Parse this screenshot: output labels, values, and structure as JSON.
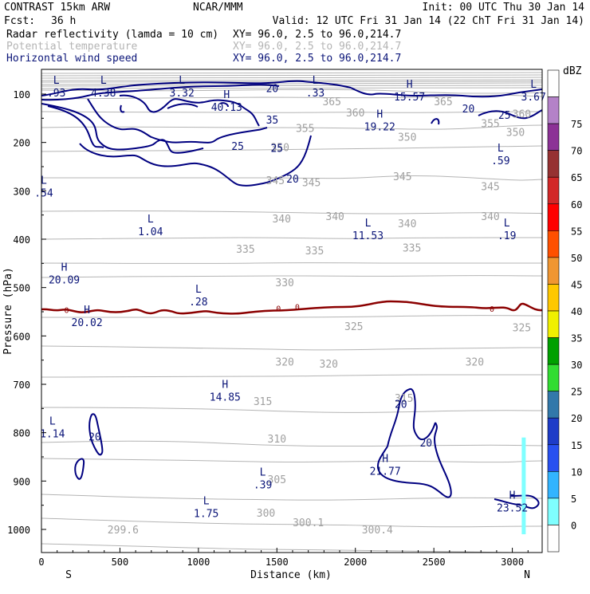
{
  "header": {
    "model": "CONTRAST 15km ARW",
    "org": "NCAR/MMM",
    "init": "Init: 00 UTC Thu 30 Jan 14",
    "fcst_label": "Fcst:",
    "fcst_value": "36 h",
    "valid": "Valid: 12 UTC Fri 31 Jan 14 (22 ChT Fri 31 Jan 14)",
    "fields": [
      {
        "name": "Radar reflectivity (lamda = 10 cm)",
        "xy": "XY=  96.0,  2.5 to  96.0,214.7",
        "color": "#000000"
      },
      {
        "name": "Potential temperature",
        "xy": "XY=  96.0,  2.5 to  96.0,214.7",
        "color": "#b4b4b4"
      },
      {
        "name": "Horizontal wind speed",
        "xy": "XY=  96.0,  2.5 to  96.0,214.7",
        "color": "#0a1478"
      }
    ]
  },
  "chart_data": {
    "type": "cross-section",
    "xlabel": "Distance (km)",
    "ylabel": "Pressure (hPa)",
    "xlim": [
      0,
      3190
    ],
    "ylim": [
      1045,
      65
    ],
    "x_ticks": [
      0,
      500,
      1000,
      1500,
      2000,
      2500,
      3000
    ],
    "y_ticks": [
      100,
      200,
      300,
      400,
      500,
      600,
      700,
      800,
      900,
      1000
    ],
    "end_labels": {
      "left": "S",
      "right": "N"
    },
    "colorbar": {
      "unit": "dBZ",
      "levels": [
        0,
        5,
        10,
        15,
        20,
        25,
        30,
        35,
        40,
        45,
        50,
        55,
        60,
        65,
        70,
        75
      ],
      "colors": [
        "#ffffff",
        "#7fffff",
        "#32b4ff",
        "#2850f0",
        "#1e3cc8",
        "#3278aa",
        "#32dc32",
        "#00a000",
        "#f0f000",
        "#ffc800",
        "#f09632",
        "#ff5000",
        "#ff0000",
        "#d22828",
        "#963232",
        "#8c3296",
        "#b482c8",
        "#ffffff"
      ]
    },
    "theta_labels": [
      {
        "text": "365",
        "x": 1850,
        "p": 115
      },
      {
        "text": "365",
        "x": 2560,
        "p": 115
      },
      {
        "text": "360",
        "x": 2000,
        "p": 138
      },
      {
        "text": "360",
        "x": 3060,
        "p": 140
      },
      {
        "text": "355",
        "x": 1680,
        "p": 170
      },
      {
        "text": "355",
        "x": 2860,
        "p": 160
      },
      {
        "text": "350",
        "x": 1520,
        "p": 210
      },
      {
        "text": "350",
        "x": 2330,
        "p": 188
      },
      {
        "text": "350",
        "x": 3020,
        "p": 178
      },
      {
        "text": "345",
        "x": 1490,
        "p": 278
      },
      {
        "text": "345",
        "x": 1720,
        "p": 282
      },
      {
        "text": "345",
        "x": 2300,
        "p": 270
      },
      {
        "text": "345",
        "x": 2860,
        "p": 290
      },
      {
        "text": "340",
        "x": 1530,
        "p": 357
      },
      {
        "text": "340",
        "x": 1870,
        "p": 352
      },
      {
        "text": "340",
        "x": 2330,
        "p": 367
      },
      {
        "text": "340",
        "x": 2860,
        "p": 352
      },
      {
        "text": "335",
        "x": 1300,
        "p": 420
      },
      {
        "text": "335",
        "x": 1740,
        "p": 423
      },
      {
        "text": "335",
        "x": 2360,
        "p": 417
      },
      {
        "text": "330",
        "x": 1550,
        "p": 489
      },
      {
        "text": "325",
        "x": 1990,
        "p": 580
      },
      {
        "text": "325",
        "x": 3060,
        "p": 582
      },
      {
        "text": "320",
        "x": 1550,
        "p": 653
      },
      {
        "text": "320",
        "x": 1830,
        "p": 657
      },
      {
        "text": "320",
        "x": 2760,
        "p": 653
      },
      {
        "text": "315",
        "x": 1410,
        "p": 735
      },
      {
        "text": "315",
        "x": 2310,
        "p": 728
      },
      {
        "text": "310",
        "x": 1500,
        "p": 812
      },
      {
        "text": "305",
        "x": 1500,
        "p": 896
      },
      {
        "text": "300",
        "x": 1430,
        "p": 965
      },
      {
        "text": "299.6",
        "x": 520,
        "p": 1000
      },
      {
        "text": "300.1",
        "x": 1700,
        "p": 985
      },
      {
        "text": "300.4",
        "x": 2140,
        "p": 1000
      }
    ],
    "wind_labels": [
      {
        "text": "20",
        "x": 1470,
        "p": 88
      },
      {
        "text": "35",
        "x": 1470,
        "p": 153
      },
      {
        "text": "25",
        "x": 1250,
        "p": 207
      },
      {
        "text": "25",
        "x": 1500,
        "p": 211
      },
      {
        "text": "20",
        "x": 1600,
        "p": 275
      },
      {
        "text": "20",
        "x": 2720,
        "p": 130
      },
      {
        "text": "25",
        "x": 2950,
        "p": 143
      },
      {
        "text": "0",
        "x": 160,
        "p": 544
      },
      {
        "text": "0",
        "x": 1510,
        "p": 541
      },
      {
        "text": "0",
        "x": 1630,
        "p": 538
      },
      {
        "text": "0",
        "x": 2870,
        "p": 542
      },
      {
        "text": "20",
        "x": 340,
        "p": 808
      },
      {
        "text": "20",
        "x": 2290,
        "p": 740
      },
      {
        "text": "20",
        "x": 2450,
        "p": 820
      }
    ],
    "extrema": [
      {
        "kind": "L",
        "value": ".93",
        "x": 95,
        "p": 90,
        "field": "wind"
      },
      {
        "kind": "L",
        "value": "4.38",
        "x": 395,
        "p": 90,
        "field": "wind"
      },
      {
        "kind": "L",
        "value": "3.32",
        "x": 895,
        "p": 90,
        "field": "wind"
      },
      {
        "kind": "L",
        "value": ".33",
        "x": 1745,
        "p": 90,
        "field": "wind"
      },
      {
        "kind": "H",
        "value": "15.57",
        "x": 2345,
        "p": 98,
        "field": "wind"
      },
      {
        "kind": "L",
        "value": "3.67",
        "x": 3135,
        "p": 98,
        "field": "wind"
      },
      {
        "kind": "H",
        "value": "40.13",
        "x": 1180,
        "p": 120,
        "field": "wind"
      },
      {
        "kind": "H",
        "value": "19.22",
        "x": 2155,
        "p": 160,
        "field": "wind"
      },
      {
        "kind": "L",
        "value": ".59",
        "x": 2925,
        "p": 230,
        "field": "wind"
      },
      {
        "kind": "L",
        "value": ".54",
        "x": 15,
        "p": 297,
        "field": "wind"
      },
      {
        "kind": "L",
        "value": "1.04",
        "x": 695,
        "p": 377,
        "field": "wind"
      },
      {
        "kind": "L",
        "value": "11.53",
        "x": 2080,
        "p": 385,
        "field": "wind"
      },
      {
        "kind": "L",
        "value": ".19",
        "x": 2965,
        "p": 385,
        "field": "wind"
      },
      {
        "kind": "H",
        "value": "20.09",
        "x": 145,
        "p": 477,
        "field": "wind"
      },
      {
        "kind": "L",
        "value": ".28",
        "x": 1000,
        "p": 522,
        "field": "wind"
      },
      {
        "kind": "H",
        "value": "20.02",
        "x": 290,
        "p": 565,
        "field": "wind"
      },
      {
        "kind": "H",
        "value": "14.85",
        "x": 1170,
        "p": 719,
        "field": "wind"
      },
      {
        "kind": "L",
        "value": "1.14",
        "x": 70,
        "p": 795,
        "field": "wind"
      },
      {
        "kind": "H",
        "value": "21.77",
        "x": 2190,
        "p": 872,
        "field": "wind"
      },
      {
        "kind": "L",
        "value": ".39",
        "x": 1410,
        "p": 900,
        "field": "wind"
      },
      {
        "kind": "L",
        "value": "1.75",
        "x": 1050,
        "p": 960,
        "field": "wind"
      },
      {
        "kind": "H",
        "value": "23.52",
        "x": 3000,
        "p": 948,
        "field": "wind"
      }
    ],
    "reflectivity": {
      "x": 3070,
      "p_top": 810,
      "p_bottom": 1010,
      "dbz": 5,
      "color": "#7fffff"
    }
  }
}
